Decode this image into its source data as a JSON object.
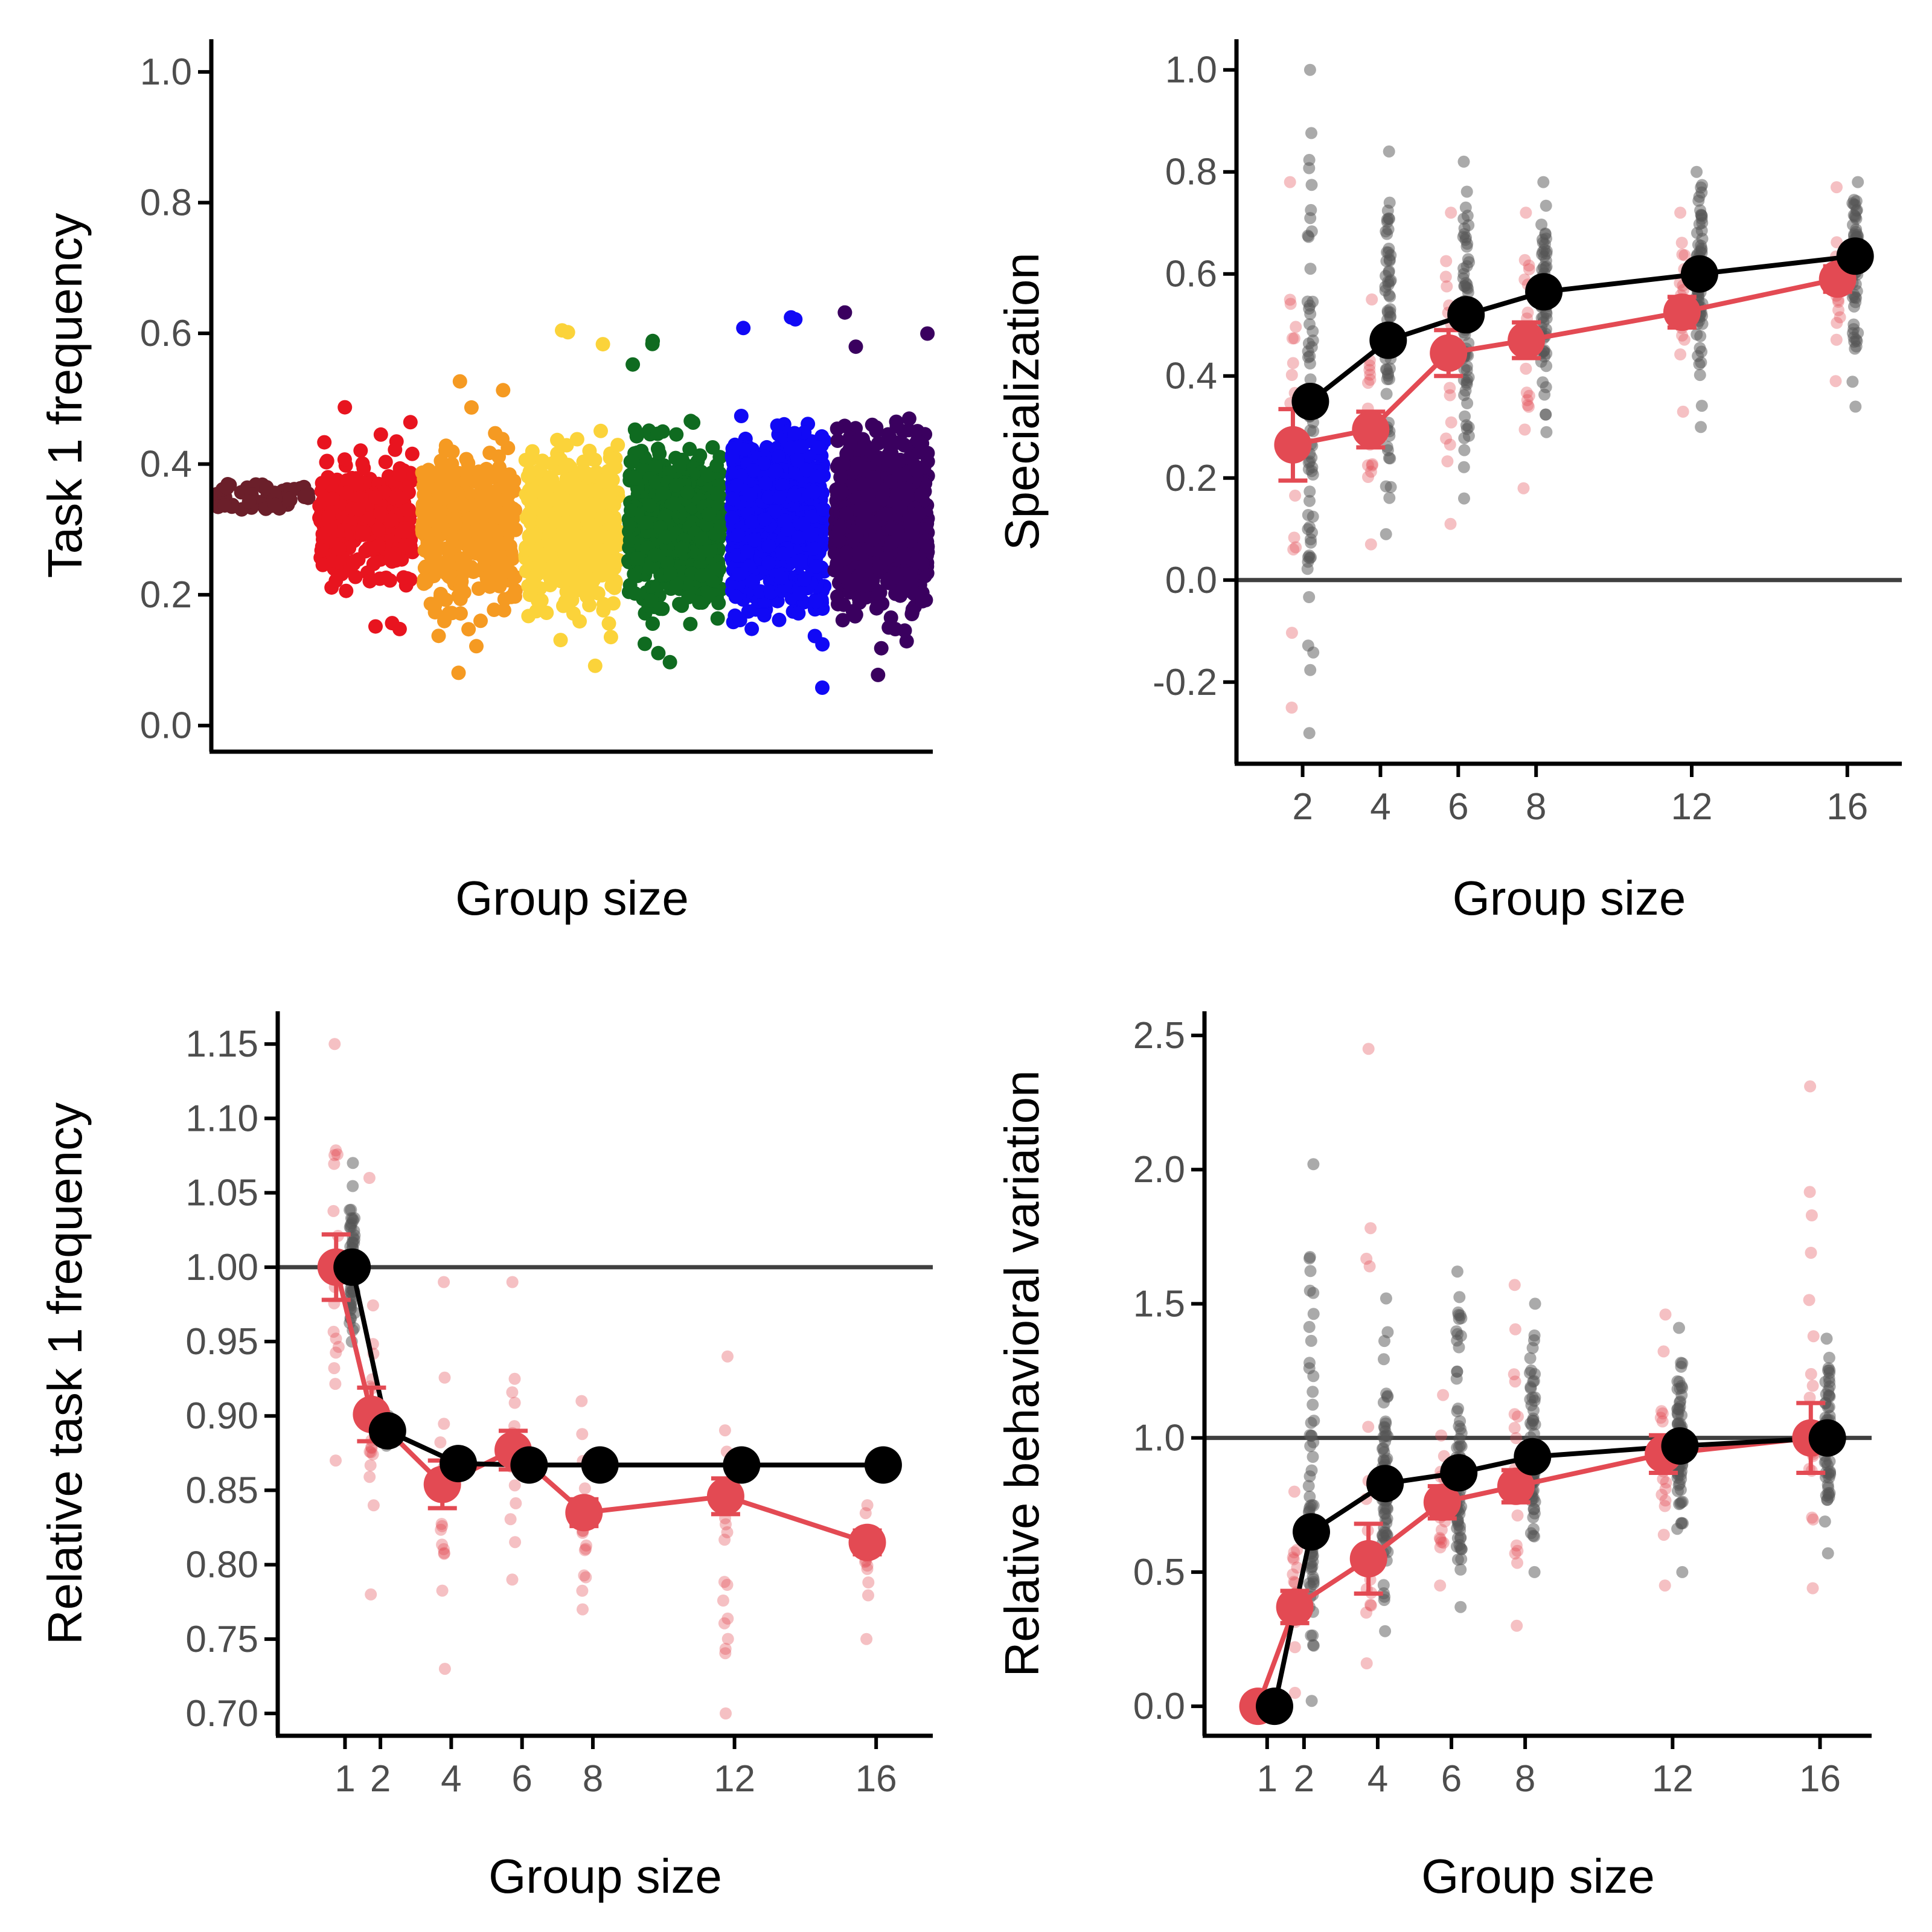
{
  "colors": {
    "simulated": "#000000",
    "observed": "#e34a53",
    "groups": [
      "#6b1f2a",
      "#e8141f",
      "#f59a22",
      "#fbd33a",
      "#0f6b20",
      "#1109f5",
      "#3a005f"
    ]
  },
  "chart_data": [
    {
      "type": "scatter",
      "ylabel": "Task 1 frequency",
      "xlabel": "Group size",
      "ylim": [
        -0.04,
        1.05
      ],
      "yticks": [
        "0.0",
        "0.2",
        "0.4",
        "0.6",
        "0.8",
        "1.0"
      ],
      "x_ticks_shown": false,
      "groups": [
        {
          "size": 1,
          "center": 0.345,
          "spread": 0.02,
          "min": 0.33,
          "max": 0.37
        },
        {
          "size": 2,
          "center": 0.32,
          "spread": 0.07,
          "min": 0.12,
          "max": 0.49
        },
        {
          "size": 4,
          "center": 0.3,
          "spread": 0.09,
          "min": 0.07,
          "max": 0.56
        },
        {
          "size": 6,
          "center": 0.3,
          "spread": 0.09,
          "min": 0.07,
          "max": 0.62
        },
        {
          "size": 8,
          "center": 0.31,
          "spread": 0.09,
          "min": 0.06,
          "max": 0.62
        },
        {
          "size": 12,
          "center": 0.31,
          "spread": 0.1,
          "min": 0.05,
          "max": 0.66
        },
        {
          "size": 16,
          "center": 0.31,
          "spread": 0.1,
          "min": 0.05,
          "max": 0.67
        }
      ]
    },
    {
      "type": "line",
      "ylabel": "Specialization",
      "xlabel": "Group size",
      "ylim": [
        -0.36,
        1.06
      ],
      "xlim": [
        0.3,
        17.4
      ],
      "yticks": [
        "-0.2",
        "0.0",
        "0.2",
        "0.4",
        "0.6",
        "0.8",
        "1.0"
      ],
      "xticks": [
        "2",
        "4",
        "6",
        "8",
        "12",
        "16"
      ],
      "hline": 0,
      "series": [
        {
          "role": "simulated",
          "x": [
            2,
            4,
            6,
            8,
            12,
            16
          ],
          "y": [
            0.35,
            0.47,
            0.52,
            0.565,
            0.6,
            0.635
          ],
          "err": [
            0,
            0,
            0,
            0,
            0,
            0
          ]
        },
        {
          "role": "observed",
          "x": [
            2,
            4,
            6,
            8,
            12,
            16
          ],
          "y": [
            0.265,
            0.295,
            0.445,
            0.47,
            0.525,
            0.59
          ],
          "err": [
            0.07,
            0.035,
            0.045,
            0.035,
            0.03,
            0.025
          ]
        }
      ],
      "raw_ranges": {
        "simulated": [
          [
            -0.3,
            1.0
          ],
          [
            0.09,
            0.84
          ],
          [
            0.16,
            0.82
          ],
          [
            0.29,
            0.78
          ],
          [
            0.3,
            0.8
          ],
          [
            0.34,
            0.78
          ]
        ],
        "observed": [
          [
            -0.25,
            0.78
          ],
          [
            0.07,
            0.55
          ],
          [
            0.11,
            0.72
          ],
          [
            0.18,
            0.72
          ],
          [
            0.33,
            0.72
          ],
          [
            0.39,
            0.77
          ]
        ]
      }
    },
    {
      "type": "line",
      "ylabel": "Relative task 1 frequency",
      "xlabel": "Group size",
      "ylim": [
        0.685,
        1.172
      ],
      "xlim": [
        -0.9,
        17.6
      ],
      "yticks": [
        "0.70",
        "0.75",
        "0.80",
        "0.85",
        "0.90",
        "0.95",
        "1.00",
        "1.05",
        "1.10",
        "1.15"
      ],
      "xticks": [
        "1",
        "2",
        "4",
        "6",
        "8",
        "12",
        "16"
      ],
      "hline": 1.0,
      "series": [
        {
          "role": "simulated",
          "x": [
            1,
            2,
            4,
            6,
            8,
            12,
            16
          ],
          "y": [
            1.0,
            0.89,
            0.868,
            0.867,
            0.867,
            0.867,
            0.867
          ],
          "err": [
            0,
            0,
            0,
            0,
            0,
            0,
            0
          ]
        },
        {
          "role": "observed",
          "x": [
            1,
            2,
            4,
            6,
            8,
            12,
            16
          ],
          "y": [
            1.0,
            0.901,
            0.854,
            0.877,
            0.835,
            0.846,
            0.815
          ],
          "err": [
            0.022,
            0.018,
            0.016,
            0.013,
            0.009,
            0.012,
            0.008
          ]
        }
      ],
      "raw_ranges": {
        "simulated": [
          [
            0.95,
            1.07
          ],
          [
            0.88,
            0.9
          ],
          [
            0.86,
            0.875
          ],
          [
            0.86,
            0.875
          ],
          [
            0.86,
            0.875
          ],
          [
            0.86,
            0.875
          ],
          [
            0.86,
            0.875
          ]
        ],
        "observed": [
          [
            0.87,
            1.15
          ],
          [
            0.78,
            1.06
          ],
          [
            0.73,
            0.99
          ],
          [
            0.79,
            0.99
          ],
          [
            0.77,
            0.91
          ],
          [
            0.7,
            0.94
          ],
          [
            0.75,
            0.84
          ]
        ]
      }
    },
    {
      "type": "line",
      "ylabel": "Relative behavioral variation",
      "xlabel": "Group size",
      "ylim": [
        -0.11,
        2.59
      ],
      "xlim": [
        -0.7,
        17.4
      ],
      "yticks": [
        "0.0",
        "0.5",
        "1.0",
        "1.5",
        "2.0",
        "2.5"
      ],
      "xticks": [
        "1",
        "2",
        "4",
        "6",
        "8",
        "12",
        "16"
      ],
      "hline": 1.0,
      "series": [
        {
          "role": "simulated",
          "x": [
            1,
            2,
            4,
            6,
            8,
            12,
            16
          ],
          "y": [
            0.0,
            0.65,
            0.83,
            0.87,
            0.93,
            0.97,
            1.0
          ],
          "err": [
            0,
            0,
            0,
            0,
            0,
            0,
            0
          ]
        },
        {
          "role": "observed",
          "x": [
            1,
            2,
            4,
            6,
            8,
            12,
            16
          ],
          "y": [
            0.0,
            0.37,
            0.55,
            0.76,
            0.82,
            0.94,
            1.0
          ],
          "err": [
            0,
            0.06,
            0.13,
            0.06,
            0.06,
            0.07,
            0.13
          ]
        }
      ],
      "raw_ranges": {
        "simulated": [
          [
            0.0,
            0.0
          ],
          [
            0.02,
            2.02
          ],
          [
            0.28,
            1.52
          ],
          [
            0.37,
            1.62
          ],
          [
            0.5,
            1.5
          ],
          [
            0.5,
            1.41
          ],
          [
            0.57,
            1.37
          ]
        ],
        "observed": [
          [
            0.0,
            0.0
          ],
          [
            0.05,
            0.8
          ],
          [
            0.16,
            2.45
          ],
          [
            0.45,
            1.16
          ],
          [
            0.3,
            1.57
          ],
          [
            0.45,
            1.46
          ],
          [
            0.44,
            2.31
          ]
        ]
      }
    }
  ]
}
